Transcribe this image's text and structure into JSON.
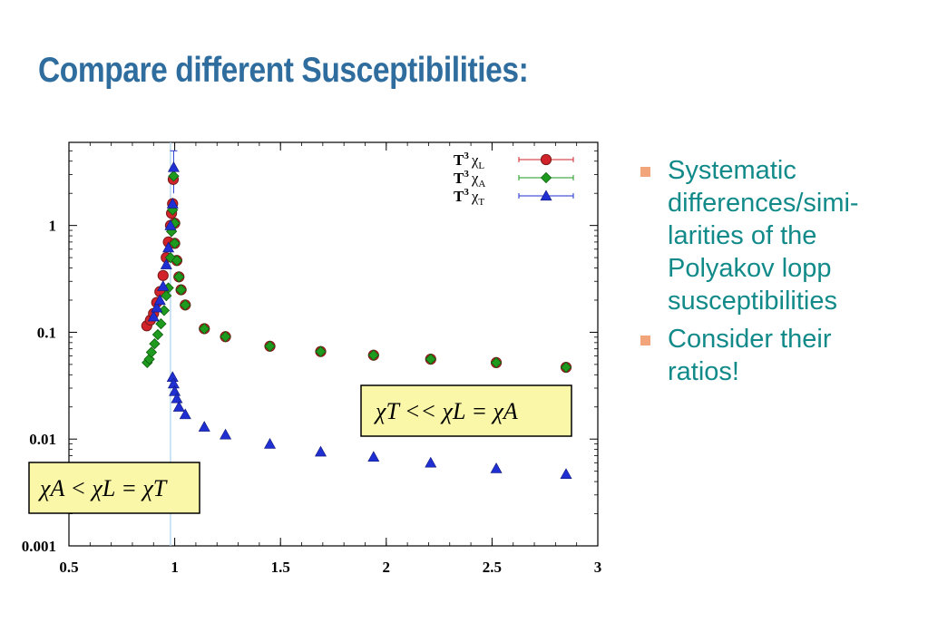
{
  "slide": {
    "title": "Compare different Susceptibilities:",
    "bullets": [
      {
        "lines": [
          "Systematic",
          "differences/simi-",
          "larities of  the",
          "Polyakov lopp",
          "susceptibilities"
        ]
      },
      {
        "lines": [
          "Consider their",
          "ratios!"
        ]
      }
    ],
    "colors": {
      "title": "#2f6d9e",
      "bullet_text": "#128a8a",
      "bullet_marker": "#f2a57a"
    }
  },
  "chart_data": {
    "type": "scatter",
    "title": "",
    "xlabel": "",
    "ylabel": "",
    "xlim": [
      0.5,
      3
    ],
    "ylim": [
      0.001,
      6
    ],
    "yscale": "log",
    "grid": false,
    "x_ticks": [
      {
        "value": 0.5,
        "label": "0.5"
      },
      {
        "value": 1,
        "label": "1"
      },
      {
        "value": 1.5,
        "label": "1.5"
      },
      {
        "value": 2,
        "label": "2"
      },
      {
        "value": 2.5,
        "label": "2.5"
      },
      {
        "value": 3,
        "label": "3"
      }
    ],
    "y_ticks": [
      {
        "value": 0.001,
        "label": "0.001"
      },
      {
        "value": 0.01,
        "label": "0.01"
      },
      {
        "value": 0.1,
        "label": "0.1"
      },
      {
        "value": 1,
        "label": "1"
      }
    ],
    "vertical_line_x": 0.98,
    "legend_position": "top-right",
    "legend": [
      {
        "prefix": "T",
        "sup": "3",
        "symbol": "χ",
        "sub": "L",
        "marker": "circle",
        "color": "#d2232a"
      },
      {
        "prefix": "T",
        "sup": "3",
        "symbol": "χ",
        "sub": "A",
        "marker": "diamond",
        "color": "#1e9a1e"
      },
      {
        "prefix": "T",
        "sup": "3",
        "symbol": "χ",
        "sub": "T",
        "marker": "triangle",
        "color": "#1f2fd1"
      }
    ],
    "series": [
      {
        "marker": "circle",
        "color": "#d2232a",
        "edge": "#7a1a1a",
        "points": [
          [
            0.868,
            0.115
          ],
          [
            0.885,
            0.13
          ],
          [
            0.9,
            0.15
          ],
          [
            0.915,
            0.19
          ],
          [
            0.93,
            0.24
          ],
          [
            0.945,
            0.34
          ],
          [
            0.96,
            0.5
          ],
          [
            0.97,
            0.7
          ],
          [
            0.98,
            1.0
          ],
          [
            0.985,
            1.3
          ],
          [
            0.99,
            1.6
          ],
          [
            0.993,
            2.7
          ],
          [
            1.0,
            1.05
          ],
          [
            1.0,
            0.68
          ],
          [
            1.01,
            0.47
          ],
          [
            1.02,
            0.33
          ],
          [
            1.03,
            0.25
          ],
          [
            1.05,
            0.18
          ],
          [
            1.14,
            0.108
          ],
          [
            1.24,
            0.091
          ],
          [
            1.45,
            0.074
          ],
          [
            1.69,
            0.066
          ],
          [
            1.94,
            0.061
          ],
          [
            2.21,
            0.056
          ],
          [
            2.52,
            0.052
          ],
          [
            2.85,
            0.047
          ]
        ]
      },
      {
        "marker": "diamond",
        "color": "#1e9a1e",
        "edge": "#0e5e0e",
        "points": [
          [
            0.87,
            0.052
          ],
          [
            0.88,
            0.056
          ],
          [
            0.89,
            0.065
          ],
          [
            0.905,
            0.078
          ],
          [
            0.92,
            0.095
          ],
          [
            0.935,
            0.12
          ],
          [
            0.95,
            0.16
          ],
          [
            0.96,
            0.22
          ],
          [
            0.97,
            0.26
          ],
          [
            0.98,
            0.5
          ],
          [
            0.985,
            0.88
          ],
          [
            0.99,
            1.4
          ],
          [
            0.995,
            2.9
          ],
          [
            1.0,
            1.05
          ],
          [
            1.0,
            0.68
          ],
          [
            1.01,
            0.47
          ],
          [
            1.02,
            0.33
          ],
          [
            1.03,
            0.25
          ],
          [
            1.05,
            0.18
          ],
          [
            1.14,
            0.108
          ],
          [
            1.24,
            0.091
          ],
          [
            1.45,
            0.074
          ],
          [
            1.69,
            0.066
          ],
          [
            1.94,
            0.061
          ],
          [
            2.21,
            0.056
          ],
          [
            2.52,
            0.052
          ],
          [
            2.85,
            0.047
          ]
        ]
      },
      {
        "marker": "triangle",
        "color": "#1f2fd1",
        "edge": "#10187a",
        "points": [
          [
            0.9,
            0.14
          ],
          [
            0.915,
            0.17
          ],
          [
            0.93,
            0.2
          ],
          [
            0.945,
            0.27
          ],
          [
            0.96,
            0.43
          ],
          [
            0.97,
            0.62
          ],
          [
            0.98,
            1.0
          ],
          [
            0.99,
            1.6
          ],
          [
            0.995,
            3.5
          ],
          [
            0.99,
            0.038
          ],
          [
            0.995,
            0.033
          ],
          [
            1.0,
            0.028
          ],
          [
            1.01,
            0.024
          ],
          [
            1.02,
            0.02
          ],
          [
            1.05,
            0.017
          ],
          [
            1.14,
            0.013
          ],
          [
            1.24,
            0.011
          ],
          [
            1.45,
            0.009
          ],
          [
            1.69,
            0.0076
          ],
          [
            1.94,
            0.0068
          ],
          [
            2.21,
            0.006
          ],
          [
            2.52,
            0.0053
          ],
          [
            2.85,
            0.0047
          ]
        ]
      }
    ],
    "annotations": [
      {
        "text": "χT << χL = χA"
      },
      {
        "text": "χA < χL = χT"
      }
    ]
  }
}
